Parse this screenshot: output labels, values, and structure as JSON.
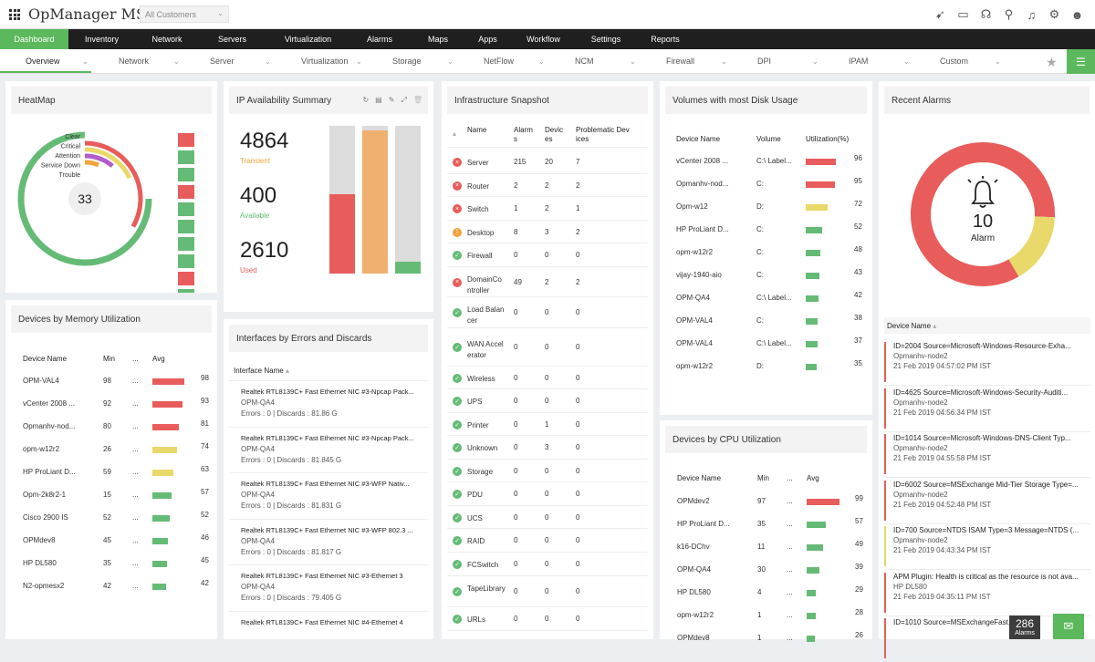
{
  "app": {
    "title": "OpManager MSP",
    "customer_select": "All Customers"
  },
  "top_icons": [
    "rocket-icon",
    "monitor-icon",
    "bug-icon",
    "search-icon",
    "bell-icon",
    "gear-icon",
    "user-icon"
  ],
  "main_nav": [
    "Dashboard",
    "Inventory",
    "Network",
    "Servers",
    "Virtualization",
    "Alarms",
    "Maps",
    "Apps",
    "Workflow",
    "Settings",
    "Reports"
  ],
  "sub_nav": [
    "Overview",
    "Network",
    "Server",
    "Virtualization",
    "Storage",
    "NetFlow",
    "NCM",
    "Firewall",
    "DPI",
    "IPAM",
    "Custom"
  ],
  "heatmap": {
    "title": "HeatMap",
    "legend": [
      "Clear",
      "Critical",
      "Attention",
      "Service Down",
      "Trouble"
    ],
    "center_value": "33",
    "colors": {
      "clear": "#65bb76",
      "critical": "#e85c5c",
      "attention": "#e9d86a",
      "service_down": "#b45cc9",
      "trouble": "#f0a43c"
    },
    "cells": [
      "critical",
      "clear",
      "clear",
      "critical",
      "clear",
      "clear",
      "clear",
      "clear",
      "critical",
      "clear"
    ]
  },
  "ip_summary": {
    "title": "IP Availability Summary",
    "stats": [
      {
        "value": "4864",
        "label": "Transient",
        "color": "#f0a43c"
      },
      {
        "value": "400",
        "label": "Available",
        "color": "#65bb76"
      },
      {
        "value": "2610",
        "label": "Used",
        "color": "#e85c5c"
      }
    ],
    "bars": [
      {
        "fraction": 0.54,
        "color": "#e85c5c"
      },
      {
        "fraction": 0.97,
        "color": "#f0b070"
      },
      {
        "fraction": 0.08,
        "color": "#65bb76"
      }
    ]
  },
  "memory": {
    "title": "Devices by Memory Utilization",
    "headers": [
      "Device Name",
      "Min",
      "...",
      "Avg"
    ],
    "rows": [
      {
        "name": "OPM-VAL4",
        "min": "98",
        "dots": "...",
        "avg": "98",
        "color": "#e85c5c"
      },
      {
        "name": "vCenter 2008 ...",
        "min": "92",
        "dots": "...",
        "avg": "93",
        "color": "#e85c5c"
      },
      {
        "name": "Opmanhv-nod...",
        "min": "80",
        "dots": "...",
        "avg": "81",
        "color": "#e85c5c"
      },
      {
        "name": "opm-w12r2",
        "min": "26",
        "dots": "...",
        "avg": "74",
        "color": "#e9d86a"
      },
      {
        "name": "HP ProLiant D...",
        "min": "59",
        "dots": "...",
        "avg": "63",
        "color": "#e9d86a"
      },
      {
        "name": "Opm-2k8r2-1",
        "min": "15",
        "dots": "...",
        "avg": "57",
        "color": "#65bb76"
      },
      {
        "name": "Cisco 2900 IS",
        "min": "52",
        "dots": "...",
        "avg": "52",
        "color": "#65bb76"
      },
      {
        "name": "OPMdev8",
        "min": "45",
        "dots": "...",
        "avg": "46",
        "color": "#65bb76"
      },
      {
        "name": "HP DL580",
        "min": "35",
        "dots": "...",
        "avg": "45",
        "color": "#65bb76"
      },
      {
        "name": "N2-opmesx2",
        "min": "42",
        "dots": "...",
        "avg": "42",
        "color": "#65bb76"
      }
    ]
  },
  "interfaces": {
    "title": "Interfaces by Errors and Discards",
    "column": "Interface Name",
    "rows": [
      {
        "name": "Realtek RTL8139C+ Fast Ethernet NIC #3-Npcap Pack...",
        "device": "OPM-QA4",
        "stats": "Errors : 0 | Discards : 81.86 G"
      },
      {
        "name": "Realtek RTL8139C+ Fast Ethernet NIC #3-Npcap Pack...",
        "device": "OPM-QA4",
        "stats": "Errors : 0 | Discards : 81.845 G"
      },
      {
        "name": "Realtek RTL8139C+ Fast Ethernet NIC #3-WFP Nativ...",
        "device": "OPM-QA4",
        "stats": "Errors : 0 | Discards : 81.831 G"
      },
      {
        "name": "Realtek RTL8139C+ Fast Ethernet NIC #3-WFP 802.3 ...",
        "device": "OPM-QA4",
        "stats": "Errors : 0 | Discards : 81.817 G"
      },
      {
        "name": "Realtek RTL8139C+ Fast Ethernet NIC #3-Ethernet 3",
        "device": "OPM-QA4",
        "stats": "Errors : 0 | Discards : 79.405 G"
      },
      {
        "name": "Realtek RTL8139C+ Fast Ethernet NIC #4-Ethernet 4",
        "device": "",
        "stats": ""
      }
    ]
  },
  "infra": {
    "title": "Infrastructure Snapshot",
    "headers": [
      "Name",
      "Alarms",
      "Devices",
      "Problematic Devices"
    ],
    "rows": [
      {
        "name": "Server",
        "alarms": "215",
        "devices": "20",
        "prob": "7",
        "status": "critical"
      },
      {
        "name": "Router",
        "alarms": "2",
        "devices": "2",
        "prob": "2",
        "status": "critical"
      },
      {
        "name": "Switch",
        "alarms": "1",
        "devices": "2",
        "prob": "1",
        "status": "critical"
      },
      {
        "name": "Desktop",
        "alarms": "8",
        "devices": "3",
        "prob": "2",
        "status": "trouble"
      },
      {
        "name": "Firewall",
        "alarms": "0",
        "devices": "0",
        "prob": "0",
        "status": "clear"
      },
      {
        "name": "DomainController",
        "alarms": "49",
        "devices": "2",
        "prob": "2",
        "status": "critical"
      },
      {
        "name": "Load Balancer",
        "alarms": "0",
        "devices": "0",
        "prob": "0",
        "status": "clear"
      },
      {
        "name": "WAN Accelerator",
        "alarms": "0",
        "devices": "0",
        "prob": "0",
        "status": "clear"
      },
      {
        "name": "Wireless",
        "alarms": "0",
        "devices": "0",
        "prob": "0",
        "status": "clear"
      },
      {
        "name": "UPS",
        "alarms": "0",
        "devices": "0",
        "prob": "0",
        "status": "clear"
      },
      {
        "name": "Printer",
        "alarms": "0",
        "devices": "1",
        "prob": "0",
        "status": "clear"
      },
      {
        "name": "Unknown",
        "alarms": "0",
        "devices": "3",
        "prob": "0",
        "status": "clear"
      },
      {
        "name": "Storage",
        "alarms": "0",
        "devices": "0",
        "prob": "0",
        "status": "clear"
      },
      {
        "name": "PDU",
        "alarms": "0",
        "devices": "0",
        "prob": "0",
        "status": "clear"
      },
      {
        "name": "UCS",
        "alarms": "0",
        "devices": "0",
        "prob": "0",
        "status": "clear"
      },
      {
        "name": "RAID",
        "alarms": "0",
        "devices": "0",
        "prob": "0",
        "status": "clear"
      },
      {
        "name": "FCSwitch",
        "alarms": "0",
        "devices": "0",
        "prob": "0",
        "status": "clear"
      },
      {
        "name": "TapeLibrary",
        "alarms": "0",
        "devices": "0",
        "prob": "0",
        "status": "clear"
      },
      {
        "name": "URLs",
        "alarms": "0",
        "devices": "0",
        "prob": "0",
        "status": "clear"
      }
    ]
  },
  "volumes": {
    "title": "Volumes with most Disk Usage",
    "headers": [
      "Device Name",
      "Volume",
      "Utilization(%)"
    ],
    "rows": [
      {
        "name": "vCenter 2008 ...",
        "vol": "C:\\ Label...",
        "util": "96",
        "color": "#e85c5c"
      },
      {
        "name": "Opmanhv-nod...",
        "vol": "C:",
        "util": "95",
        "color": "#e85c5c"
      },
      {
        "name": "Opm-w12",
        "vol": "D:",
        "util": "72",
        "color": "#e9d86a"
      },
      {
        "name": "HP ProLiant D...",
        "vol": "C:",
        "util": "52",
        "color": "#65bb76"
      },
      {
        "name": "opm-w12r2",
        "vol": "C:",
        "util": "48",
        "color": "#65bb76"
      },
      {
        "name": "vijay-1940-aio",
        "vol": "C:",
        "util": "43",
        "color": "#65bb76"
      },
      {
        "name": "OPM-QA4",
        "vol": "C:\\ Label...",
        "util": "42",
        "color": "#65bb76"
      },
      {
        "name": "OPM-VAL4",
        "vol": "C:",
        "util": "38",
        "color": "#65bb76"
      },
      {
        "name": "OPM-VAL4",
        "vol": "C:\\ Label...",
        "util": "37",
        "color": "#65bb76"
      },
      {
        "name": "opm-w12r2",
        "vol": "D:",
        "util": "35",
        "color": "#65bb76"
      }
    ]
  },
  "cpu": {
    "title": "Devices by CPU Utilization",
    "headers": [
      "Device Name",
      "Min",
      "...",
      "Avg"
    ],
    "rows": [
      {
        "name": "OPMdev2",
        "min": "97",
        "dots": "...",
        "avg": "99",
        "color": "#e85c5c"
      },
      {
        "name": "HP ProLiant D...",
        "min": "35",
        "dots": "...",
        "avg": "57",
        "color": "#65bb76"
      },
      {
        "name": "k16-DChv",
        "min": "11",
        "dots": "...",
        "avg": "49",
        "color": "#65bb76"
      },
      {
        "name": "OPM-QA4",
        "min": "30",
        "dots": "...",
        "avg": "39",
        "color": "#65bb76"
      },
      {
        "name": "HP DL580",
        "min": "4",
        "dots": "...",
        "avg": "29",
        "color": "#65bb76"
      },
      {
        "name": "opm-w12r2",
        "min": "1",
        "dots": "...",
        "avg": "28",
        "color": "#65bb76"
      },
      {
        "name": "OPMdev8",
        "min": "1",
        "dots": "...",
        "avg": "26",
        "color": "#65bb76"
      }
    ]
  },
  "recent_alarms": {
    "title": "Recent Alarms",
    "count": "10",
    "label": "Alarm",
    "column": "Device Name",
    "donut": [
      {
        "fraction": 0.84,
        "color": "#e85c5c"
      },
      {
        "fraction": 0.16,
        "color": "#e9d86a"
      }
    ],
    "items": [
      {
        "text": "ID=2004 Source=Microsoft-Windows-Resource-Exha...",
        "device": "Opmanhv-node2",
        "time": "21 Feb 2019 04:57:02 PM IST",
        "color": "#e85c5c"
      },
      {
        "text": "ID=4625 Source=Microsoft-Windows-Security-Auditi...",
        "device": "Opmanhv-node2",
        "time": "21 Feb 2019 04:56:34 PM IST",
        "color": "#e85c5c"
      },
      {
        "text": "ID=1014 Source=Microsoft-Windows-DNS-Client Typ...",
        "device": "Opmanhv-node2",
        "time": "21 Feb 2019 04:55:58 PM IST",
        "color": "#e85c5c"
      },
      {
        "text": "ID=6002 Source=MSExchange Mid-Tier Storage Type=...",
        "device": "Opmanhv-node2",
        "time": "21 Feb 2019 04:52:48 PM IST",
        "color": "#e85c5c"
      },
      {
        "text": "ID=700 Source=NTDS ISAM Type=3 Message=NTDS (...",
        "device": "Opmanhv-node2",
        "time": "21 Feb 2019 04:43:34 PM IST",
        "color": "#e9d86a"
      },
      {
        "text": "APM Plugin: Health is critical as the resource is not ava...",
        "device": "HP DL580",
        "time": "21 Feb 2019 04:35:11 PM IST",
        "color": "#e85c5c"
      },
      {
        "text": "ID=1010 Source=MSExchangeFast...",
        "device": "",
        "time": "",
        "color": "#e85c5c"
      }
    ]
  },
  "footer": {
    "alarm_count": "286",
    "alarm_label": "Alarms"
  }
}
